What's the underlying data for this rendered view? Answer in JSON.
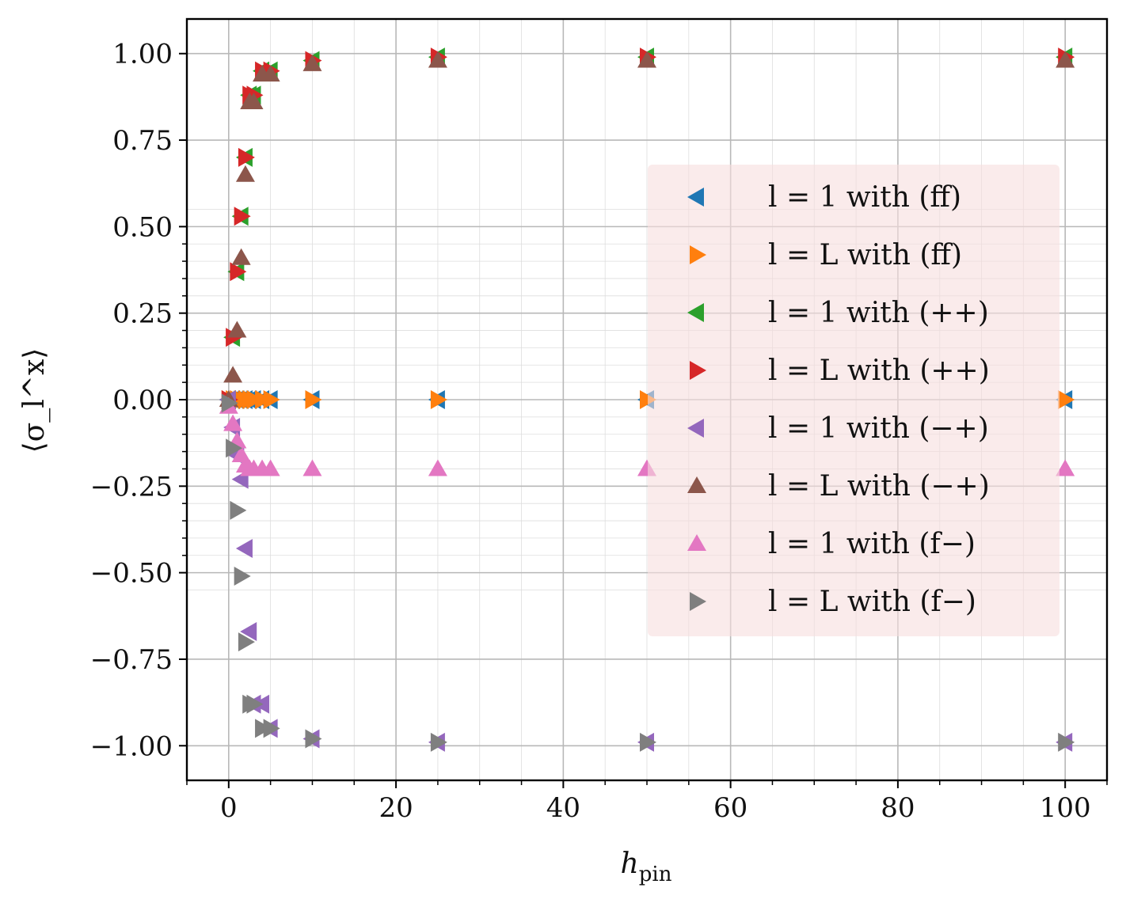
{
  "chart_data": {
    "type": "scatter",
    "title": "",
    "xlabel": "h_pin",
    "xlabel_main": "h",
    "xlabel_sub": "pin",
    "ylabel": "⟨σ_l^x⟩",
    "xlim": [
      -5,
      105
    ],
    "ylim": [
      -1.1,
      1.1
    ],
    "grid": true,
    "legend_position": "center-right",
    "x_ticks": [
      0,
      20,
      40,
      60,
      80,
      100
    ],
    "x_tick_labels": [
      "0",
      "20",
      "40",
      "60",
      "80",
      "100"
    ],
    "y_ticks": [
      1.0,
      0.75,
      0.5,
      0.25,
      0.0,
      -0.25,
      -0.5,
      -0.75,
      -1.0
    ],
    "y_tick_labels": [
      "1.00",
      "0.75",
      "0.50",
      "0.25",
      "0.00",
      "−0.25",
      "−0.50",
      "−0.75",
      "−1.00"
    ],
    "series": [
      {
        "name": "l = 1 with (ff)",
        "marker": "triangle-left",
        "color": "#1f77b4",
        "x": [
          0,
          0.5,
          1,
          1.5,
          2,
          2.5,
          3,
          4,
          5,
          10,
          25,
          50,
          100
        ],
        "y": [
          0.0,
          0.0,
          0.0,
          0.0,
          0.0,
          0.0,
          0.0,
          0.0,
          0.0,
          0.0,
          0.0,
          0.0,
          0.0
        ]
      },
      {
        "name": "l = L with (ff)",
        "marker": "triangle-right",
        "color": "#ff7f0e",
        "x": [
          0,
          0.5,
          1,
          1.5,
          2,
          2.5,
          3,
          4,
          5,
          10,
          25,
          50,
          100
        ],
        "y": [
          0.0,
          0.0,
          0.0,
          0.0,
          0.0,
          0.0,
          0.0,
          0.0,
          0.0,
          0.0,
          0.0,
          0.0,
          0.0
        ]
      },
      {
        "name": "l = 1 with (++)",
        "marker": "triangle-left",
        "color": "#2ca02c",
        "x": [
          0,
          0.5,
          1,
          1.5,
          2,
          2.5,
          3,
          4,
          5,
          10,
          25,
          50,
          100
        ],
        "y": [
          0.0,
          0.18,
          0.37,
          0.53,
          0.7,
          0.88,
          0.88,
          0.95,
          0.95,
          0.98,
          0.99,
          0.99,
          0.99
        ]
      },
      {
        "name": "l = L with (++)",
        "marker": "triangle-right",
        "color": "#d62728",
        "x": [
          0,
          0.5,
          1,
          1.5,
          2,
          2.5,
          3,
          4,
          5,
          10,
          25,
          50,
          100
        ],
        "y": [
          0.0,
          0.18,
          0.37,
          0.53,
          0.7,
          0.88,
          0.88,
          0.95,
          0.95,
          0.98,
          0.99,
          0.99,
          0.99
        ]
      },
      {
        "name": "l = 1 with (−+)",
        "marker": "triangle-left",
        "color": "#9467bd",
        "x": [
          0,
          0.5,
          1,
          1.5,
          2,
          2.5,
          3,
          4,
          5,
          10,
          25,
          50,
          100
        ],
        "y": [
          0.0,
          -0.08,
          -0.16,
          -0.23,
          -0.43,
          -0.67,
          -0.88,
          -0.88,
          -0.95,
          -0.98,
          -0.99,
          -0.99,
          -0.99
        ]
      },
      {
        "name": "l = L with (−+)",
        "marker": "triangle-up",
        "color": "#8c564b",
        "x": [
          0,
          0.5,
          1,
          1.5,
          2,
          2.5,
          3,
          4,
          5,
          10,
          25,
          50,
          100
        ],
        "y": [
          0.0,
          0.07,
          0.2,
          0.41,
          0.65,
          0.86,
          0.86,
          0.94,
          0.94,
          0.97,
          0.98,
          0.98,
          0.98
        ]
      },
      {
        "name": "l = 1 with (f−)",
        "marker": "triangle-up",
        "color": "#e377c2",
        "x": [
          0,
          0.5,
          1,
          1.5,
          2,
          2.5,
          3,
          4,
          5,
          10,
          25,
          50,
          100
        ],
        "y": [
          -0.02,
          -0.07,
          -0.12,
          -0.16,
          -0.19,
          -0.2,
          -0.2,
          -0.2,
          -0.2,
          -0.2,
          -0.2,
          -0.2,
          -0.2
        ]
      },
      {
        "name": "l = L with (f−)",
        "marker": "triangle-right",
        "color": "#7f7f7f",
        "x": [
          0,
          0.5,
          1,
          1.5,
          2,
          2.5,
          3,
          4,
          5,
          10,
          25,
          50,
          100
        ],
        "y": [
          -0.01,
          -0.14,
          -0.32,
          -0.51,
          -0.7,
          -0.88,
          -0.88,
          -0.95,
          -0.95,
          -0.98,
          -0.99,
          -0.99,
          -0.99
        ]
      }
    ]
  }
}
